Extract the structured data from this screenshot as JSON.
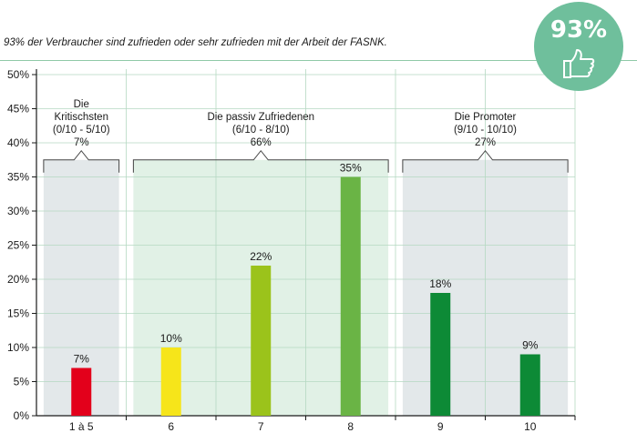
{
  "header": {
    "subtitle": "93% der Verbraucher sind zufrieden oder sehr zufrieden mit der Arbeit der FASNK.",
    "badge_value": "93%",
    "badge_icon": "thumbs-up-icon",
    "badge_color": "#6fbf9c"
  },
  "chart_data": {
    "type": "bar",
    "categories": [
      "1 à 5",
      "6",
      "7",
      "8",
      "9",
      "10"
    ],
    "values": [
      7,
      10,
      22,
      35,
      18,
      9
    ],
    "data_labels": [
      "7%",
      "10%",
      "22%",
      "35%",
      "18%",
      "9%"
    ],
    "colors": [
      "#e3001b",
      "#f6e51a",
      "#9bc31b",
      "#6ab445",
      "#0d8a36",
      "#0d8a36"
    ],
    "ylim": [
      0,
      50
    ],
    "yticks": [
      0,
      5,
      10,
      15,
      20,
      25,
      30,
      35,
      40,
      45,
      50
    ],
    "ytick_labels": [
      "0%",
      "5%",
      "10%",
      "15%",
      "20%",
      "25%",
      "30%",
      "35%",
      "40%",
      "45%",
      "50%"
    ],
    "grid": true,
    "groups": [
      {
        "lines": [
          "Die",
          "Kritischsten",
          "(0/10 - 5/10)",
          "7%"
        ],
        "from": 0,
        "to": 0,
        "shade": "#e3e8ea"
      },
      {
        "lines": [
          "Die passiv Zufriedenen",
          "(6/10 - 8/10)",
          "66%"
        ],
        "from": 1,
        "to": 3,
        "shade": "#e1f1e6"
      },
      {
        "lines": [
          "Die Promoter",
          "(9/10 - 10/10)",
          "27%"
        ],
        "from": 4,
        "to": 5,
        "shade": "#e3e8ea"
      }
    ]
  }
}
